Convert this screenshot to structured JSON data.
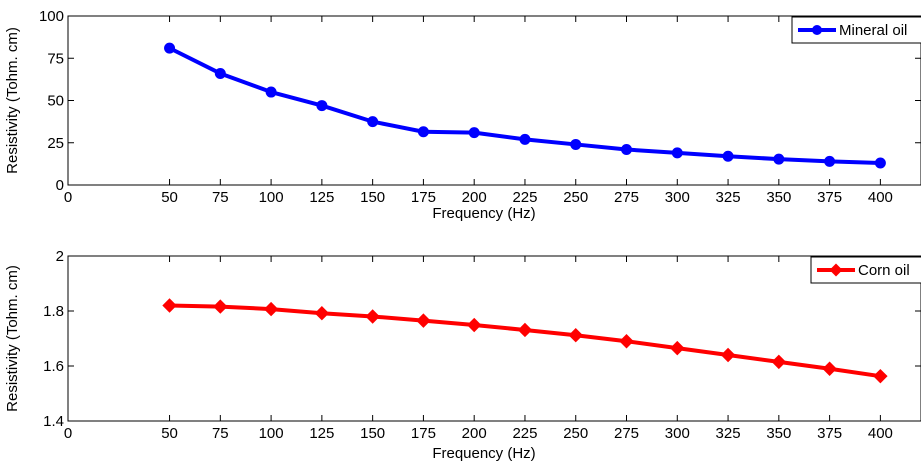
{
  "chart_data": [
    {
      "type": "line",
      "x": [
        50,
        75,
        100,
        125,
        150,
        175,
        200,
        225,
        250,
        275,
        300,
        325,
        350,
        375,
        400
      ],
      "xlim": [
        0,
        420
      ],
      "xticks": [
        "0",
        "50",
        "75",
        "100",
        "125",
        "150",
        "175",
        "200",
        "225",
        "250",
        "275",
        "300",
        "325",
        "350",
        "375",
        "400"
      ],
      "ylim": [
        0,
        100
      ],
      "yticks": [
        "0",
        "25",
        "50",
        "75",
        "100"
      ],
      "xlabel": "Frequency (Hz)",
      "ylabel": "Resistivity (Tohm. cm)",
      "legend_position": "top-right",
      "grid": false,
      "series": [
        {
          "name": "Mineral oil",
          "color": "#0000ff",
          "marker": "circle",
          "values": [
            81,
            66,
            55,
            47,
            37.5,
            31.5,
            31,
            27,
            24,
            21,
            19,
            17,
            15.3,
            14,
            13
          ]
        }
      ]
    },
    {
      "type": "line",
      "x": [
        50,
        75,
        100,
        125,
        150,
        175,
        200,
        225,
        250,
        275,
        300,
        325,
        350,
        375,
        400
      ],
      "xlim": [
        0,
        420
      ],
      "xticks": [
        "0",
        "50",
        "75",
        "100",
        "125",
        "150",
        "175",
        "200",
        "225",
        "250",
        "275",
        "300",
        "325",
        "350",
        "375",
        "400"
      ],
      "ylim": [
        1.4,
        2
      ],
      "yticks": [
        "1.4",
        "1.6",
        "1.8",
        "2"
      ],
      "xlabel": "Frequency (Hz)",
      "ylabel": "Resistivity (Tohm. cm)",
      "legend_position": "top-right",
      "grid": false,
      "series": [
        {
          "name": "Corn oil",
          "color": "#ff0000",
          "marker": "diamond",
          "values": [
            1.82,
            1.816,
            1.807,
            1.792,
            1.78,
            1.765,
            1.749,
            1.731,
            1.712,
            1.69,
            1.665,
            1.64,
            1.615,
            1.59,
            1.563
          ]
        }
      ]
    }
  ]
}
